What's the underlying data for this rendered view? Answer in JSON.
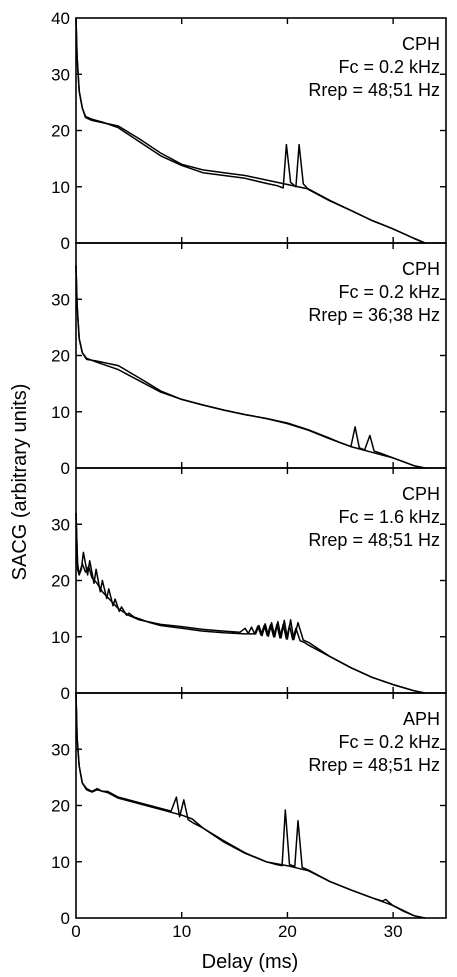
{
  "figure": {
    "xlabel": "Delay (ms)",
    "ylabel": "SACG (arbitrary units)"
  },
  "chart_data": [
    {
      "type": "line",
      "annotation": [
        "CPH",
        "Fc = 0.2 kHz",
        "Rrep = 48;51 Hz"
      ],
      "xlim": [
        0,
        35
      ],
      "ylim": [
        0,
        40
      ],
      "xticks": [
        0,
        10,
        20,
        30
      ],
      "yticks": [
        0,
        10,
        20,
        30,
        40
      ],
      "series": [
        {
          "x": [
            0,
            0.1,
            0.3,
            0.6,
            0.9,
            1.5,
            2.5,
            4,
            6,
            8,
            10,
            12,
            14,
            16,
            18,
            19,
            19.6,
            19.9,
            20.3,
            20.8,
            21.1,
            21.5,
            22,
            24,
            26,
            28,
            30,
            32,
            33
          ],
          "y": [
            40,
            33,
            27,
            24,
            22.5,
            22,
            21.5,
            20.5,
            18,
            15.5,
            13.8,
            12.5,
            12,
            11.5,
            10.6,
            10.2,
            9.8,
            17.5,
            10.8,
            10,
            17.5,
            10.5,
            9.5,
            7.5,
            5.8,
            4,
            2.5,
            0.8,
            0
          ]
        },
        {
          "x": [
            0,
            0.1,
            0.3,
            0.6,
            0.9,
            1.5,
            2.5,
            4,
            6,
            8,
            10,
            12,
            14,
            16,
            18,
            20,
            22,
            24,
            26,
            28,
            30,
            32,
            33
          ],
          "y": [
            40,
            33,
            27,
            24,
            22.3,
            21.8,
            21.4,
            20.8,
            18.5,
            16,
            14,
            13,
            12.5,
            12,
            11.2,
            10.4,
            9.6,
            7.6,
            5.8,
            4,
            2.5,
            0.8,
            0
          ]
        }
      ]
    },
    {
      "type": "line",
      "annotation": [
        "CPH",
        "Fc = 0.2 kHz",
        "Rrep = 36;38 Hz"
      ],
      "xlim": [
        0,
        35
      ],
      "ylim": [
        0,
        40
      ],
      "xticks": [
        0,
        10,
        20,
        30
      ],
      "yticks": [
        0,
        10,
        20,
        30
      ],
      "series": [
        {
          "x": [
            0,
            0.1,
            0.3,
            0.6,
            1,
            2,
            4,
            6,
            8,
            10,
            12,
            14,
            16,
            18,
            20,
            22,
            24,
            25,
            26,
            26.4,
            26.8,
            27.3,
            27.8,
            28.2,
            29,
            30,
            31,
            32,
            33
          ],
          "y": [
            36,
            29,
            23,
            20.5,
            19.5,
            18.8,
            17.5,
            15.5,
            13.5,
            12.2,
            11.2,
            10.3,
            9.5,
            8.8,
            8,
            6.8,
            5.3,
            4.5,
            3.8,
            7.3,
            3.6,
            3.2,
            5.8,
            3,
            2.5,
            1.8,
            1.1,
            0.4,
            0
          ]
        },
        {
          "x": [
            0,
            0.1,
            0.3,
            0.6,
            1,
            2,
            4,
            6,
            8,
            10,
            12,
            14,
            16,
            18,
            20,
            22,
            24,
            26,
            28,
            30,
            32,
            33
          ],
          "y": [
            36,
            29,
            23,
            20.5,
            19.3,
            19,
            18.2,
            16,
            13.7,
            12.2,
            11.2,
            10.3,
            9.5,
            8.8,
            7.9,
            6.7,
            5.2,
            3.8,
            2.8,
            1.8,
            0.4,
            0
          ]
        }
      ]
    },
    {
      "type": "line",
      "annotation": [
        "CPH",
        "Fc = 1.6 kHz",
        "Rrep = 48;51 Hz"
      ],
      "xlim": [
        0,
        35
      ],
      "ylim": [
        0,
        40
      ],
      "xticks": [
        0,
        10,
        20,
        30
      ],
      "yticks": [
        0,
        10,
        20,
        30
      ],
      "series": [
        {
          "x": [
            0,
            0.15,
            0.3,
            0.5,
            0.7,
            1.1,
            1.3,
            1.7,
            1.9,
            2.3,
            2.5,
            2.9,
            3.1,
            3.5,
            3.7,
            4.1,
            4.3,
            4.8,
            5,
            5.5,
            6,
            7,
            8,
            10,
            12,
            14,
            16,
            17,
            17.3,
            17.6,
            17.9,
            18.2,
            18.5,
            18.8,
            19.1,
            19.4,
            19.7,
            20,
            20.3,
            20.6,
            21,
            21.5,
            22,
            24,
            26,
            28,
            30,
            32,
            33
          ],
          "y": [
            32,
            23,
            21,
            22,
            25,
            21,
            23.5,
            19.5,
            22,
            18,
            20,
            16.8,
            18.5,
            15.5,
            16.7,
            14.5,
            15.3,
            13.8,
            14.2,
            13.5,
            13.2,
            12.5,
            12,
            11.5,
            11,
            10.7,
            10.5,
            10.5,
            12,
            10.2,
            12.3,
            10.1,
            12.5,
            10,
            12.7,
            9.8,
            12.9,
            9.6,
            13,
            9.5,
            12.5,
            9.4,
            9,
            6.5,
            4.5,
            2.8,
            1.5,
            0.4,
            0
          ]
        },
        {
          "x": [
            0,
            0.15,
            0.3,
            0.6,
            0.9,
            1.2,
            1.5,
            2,
            2.5,
            3,
            3.5,
            4,
            5,
            6,
            8,
            10,
            12,
            14,
            15.5,
            16,
            16.3,
            16.6,
            16.9,
            17.2,
            17.5,
            17.8,
            18.1,
            18.4,
            18.7,
            19,
            19.3,
            19.6,
            19.9,
            20.2,
            20.5,
            20.8,
            21.2,
            21.6,
            22,
            23,
            24,
            26,
            28,
            30,
            32,
            33
          ],
          "y": [
            32,
            22,
            21,
            23,
            21.5,
            22.5,
            20.5,
            19.5,
            18,
            17,
            16,
            15,
            13.8,
            13,
            12.2,
            11.8,
            11.3,
            11,
            10.8,
            11.5,
            10.6,
            11.7,
            10.5,
            11.9,
            10.3,
            12,
            10.2,
            12.1,
            10,
            12.2,
            9.8,
            12.2,
            9.6,
            12,
            9.5,
            11.5,
            9.3,
            9,
            8.5,
            7.5,
            6.5,
            4.5,
            2.8,
            1.5,
            0.4,
            0
          ]
        }
      ]
    },
    {
      "type": "line",
      "annotation": [
        "APH",
        "Fc = 0.2 kHz",
        "Rrep = 48;51 Hz"
      ],
      "xlim": [
        0,
        35
      ],
      "ylim": [
        0,
        40
      ],
      "xticks": [
        0,
        10,
        20,
        30
      ],
      "yticks": [
        0,
        10,
        20,
        30
      ],
      "series": [
        {
          "x": [
            0,
            0.1,
            0.3,
            0.6,
            1,
            1.5,
            2,
            2.5,
            3,
            4,
            6,
            8,
            9,
            9.5,
            9.8,
            10.2,
            10.6,
            11,
            11.5,
            12,
            14,
            16,
            18,
            19,
            19.5,
            19.8,
            20.2,
            20.7,
            21,
            21.4,
            22,
            24,
            26,
            28,
            29,
            29.3,
            29.6,
            30,
            31,
            32,
            33
          ],
          "y": [
            40,
            32,
            27,
            24,
            23,
            22.5,
            23,
            22.5,
            22.5,
            21.5,
            20.5,
            19.5,
            19,
            21.5,
            18,
            21,
            17.5,
            17,
            16.5,
            16,
            13.5,
            11.5,
            10,
            9.5,
            9.3,
            19.2,
            9.5,
            9.2,
            17.3,
            9,
            8.5,
            6.5,
            5,
            3.6,
            3,
            3.3,
            2.8,
            2.2,
            1.2,
            0.4,
            0
          ]
        },
        {
          "x": [
            0,
            0.1,
            0.3,
            0.6,
            1,
            1.5,
            2,
            3,
            4,
            6,
            8,
            9,
            10,
            11,
            12,
            14,
            16,
            18,
            20,
            22,
            24,
            26,
            28,
            30,
            32,
            33
          ],
          "y": [
            40,
            32,
            27,
            24,
            22.8,
            22.4,
            22.8,
            22.3,
            21.3,
            20.3,
            19.3,
            18.8,
            18.3,
            17.6,
            16,
            13.7,
            11.6,
            10,
            9.3,
            8.4,
            6.5,
            5,
            3.6,
            2.2,
            0.4,
            0
          ]
        }
      ]
    }
  ]
}
